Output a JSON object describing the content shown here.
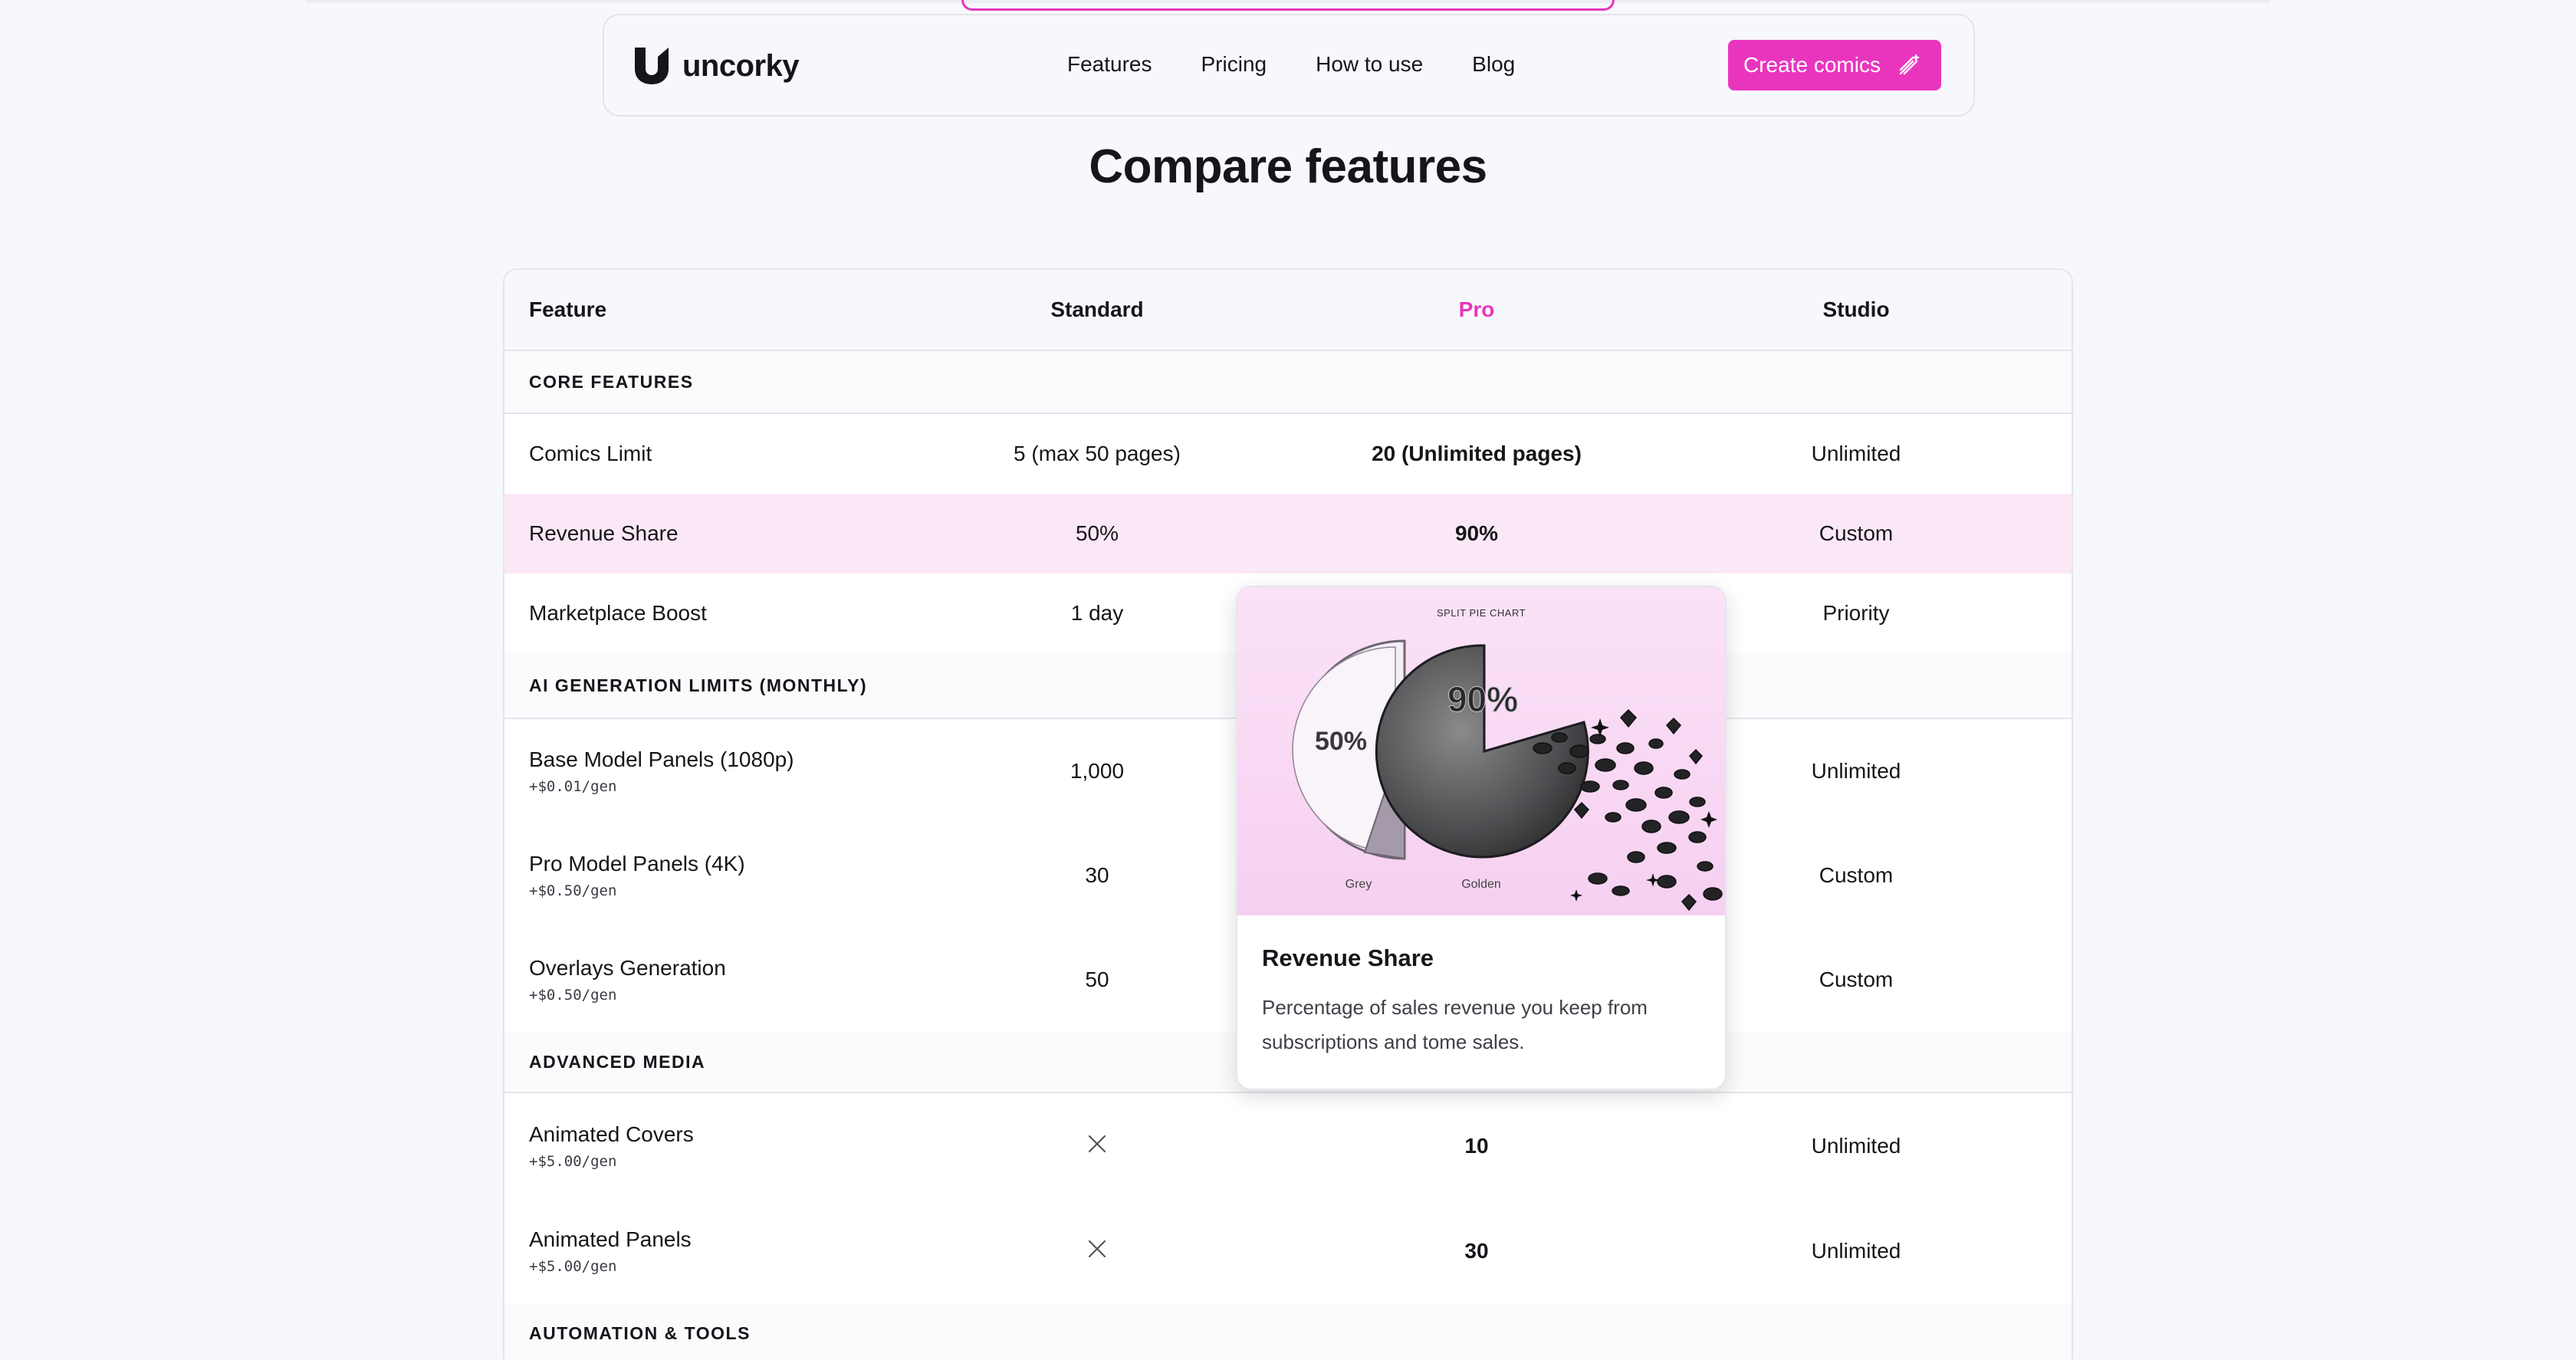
{
  "brand": {
    "name": "uncorky",
    "accent": "#e935be"
  },
  "nav": {
    "links": [
      "Features",
      "Pricing",
      "How to use",
      "Blog"
    ],
    "cta_label": "Create comics",
    "cta_icon": "magic-wand-icon"
  },
  "page_title": "Compare features",
  "table": {
    "headers": {
      "feature": "Feature",
      "standard": "Standard",
      "pro": "Pro",
      "studio": "Studio"
    },
    "sections": [
      {
        "label": "CORE FEATURES",
        "rows": [
          {
            "name": "Comics Limit",
            "standard": "5 (max 50 pages)",
            "pro": "20 (Unlimited pages)",
            "studio": "Unlimited"
          },
          {
            "name": "Revenue Share",
            "standard": "50%",
            "pro": "90%",
            "studio": "Custom"
          },
          {
            "name": "Marketplace Boost",
            "standard": "1 day",
            "pro": "",
            "studio": "Priority"
          }
        ]
      },
      {
        "label": "AI GENERATION LIMITS (MONTHLY)",
        "rows": [
          {
            "name": "Base Model Panels (1080p)",
            "sub": "+$0.01/gen",
            "standard": "1,000",
            "pro": "",
            "studio": "Unlimited"
          },
          {
            "name": "Pro Model Panels (4K)",
            "sub": "+$0.50/gen",
            "standard": "30",
            "pro": "",
            "studio": "Custom"
          },
          {
            "name": "Overlays Generation",
            "sub": "+$0.50/gen",
            "standard": "50",
            "pro": "",
            "studio": "Custom"
          }
        ]
      },
      {
        "label": "ADVANCED MEDIA",
        "rows": [
          {
            "name": "Animated Covers",
            "sub": "+$5.00/gen",
            "standard_icon": "x-icon",
            "pro": "10",
            "studio": "Unlimited"
          },
          {
            "name": "Animated Panels",
            "sub": "+$5.00/gen",
            "standard_icon": "x-icon",
            "pro": "30",
            "studio": "Unlimited"
          }
        ]
      },
      {
        "label": "AUTOMATION & TOOLS",
        "rows": []
      }
    ]
  },
  "popover": {
    "image": {
      "caption": "SPLIT PIE CHART",
      "left_value": "50%",
      "right_value": "90%",
      "left_label": "Grey",
      "right_label": "Golden"
    },
    "title": "Revenue Share",
    "description": "Percentage of sales revenue you keep from subscriptions and tome sales."
  }
}
